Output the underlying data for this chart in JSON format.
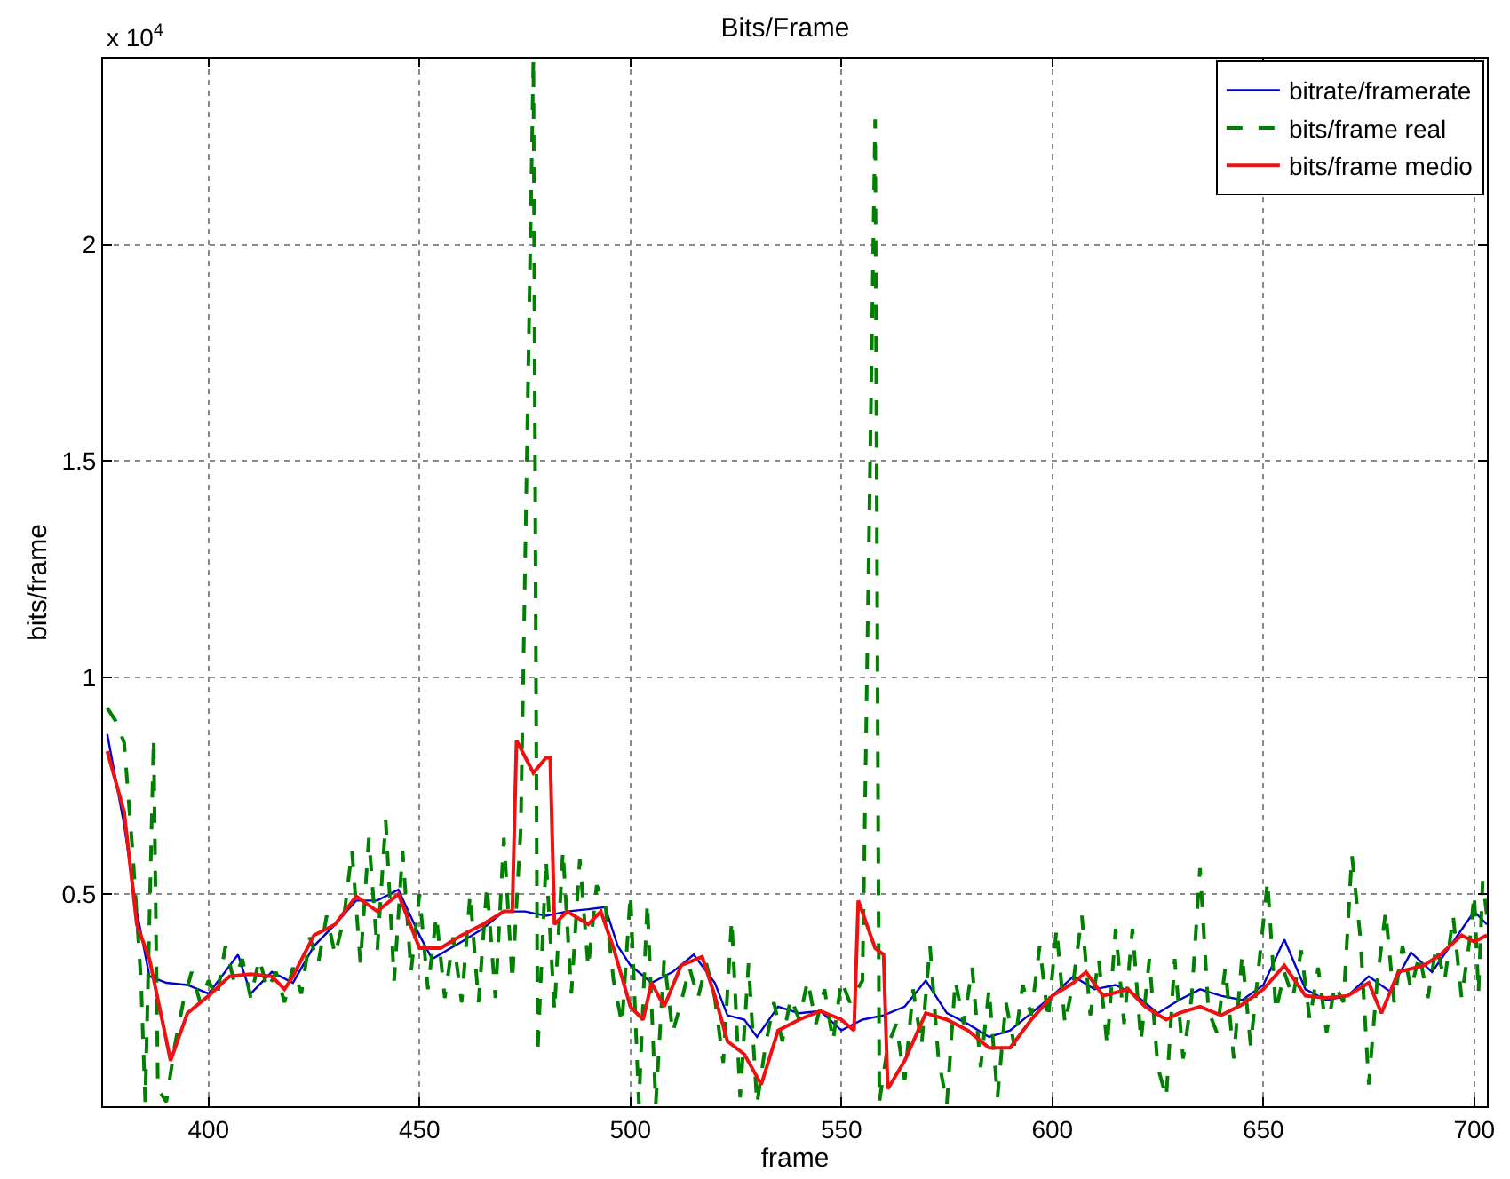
{
  "chart_data": {
    "type": "line",
    "title": "Bits/Frame",
    "xlabel": "frame",
    "ylabel": "bits/frame",
    "annotations": [
      "x 10$^{4}$"
    ],
    "xlim": [
      375,
      703
    ],
    "xticks": [
      400,
      450,
      500,
      550,
      600,
      650,
      700
    ],
    "ylim": [
      0.01,
      2.43
    ],
    "yticks": [
      0.5,
      1,
      1.5,
      2
    ],
    "grid": true,
    "legend": "top right",
    "marker": "none",
    "series": [
      {
        "name": "bitrate/framerate",
        "color": "#0000cc",
        "line_style": "solid",
        "x": [
          376,
          380,
          383,
          386,
          390,
          395,
          400,
          407,
          410,
          415,
          420,
          425,
          430,
          435,
          440,
          445,
          450,
          453,
          460,
          465,
          470,
          475,
          480,
          485,
          490,
          494,
          497,
          500,
          505,
          510,
          515,
          520,
          523,
          527,
          530,
          535,
          540,
          545,
          550,
          555,
          560,
          565,
          570,
          575,
          580,
          585,
          590,
          595,
          600,
          605,
          610,
          615,
          620,
          625,
          630,
          635,
          640,
          645,
          650,
          655,
          660,
          665,
          670,
          675,
          680,
          685,
          690,
          695,
          700,
          703
        ],
        "values": [
          0.87,
          0.66,
          0.46,
          0.31,
          0.295,
          0.29,
          0.27,
          0.36,
          0.27,
          0.32,
          0.295,
          0.38,
          0.43,
          0.485,
          0.485,
          0.51,
          0.405,
          0.35,
          0.39,
          0.42,
          0.46,
          0.46,
          0.45,
          0.46,
          0.465,
          0.47,
          0.38,
          0.335,
          0.295,
          0.32,
          0.36,
          0.295,
          0.22,
          0.21,
          0.17,
          0.24,
          0.225,
          0.23,
          0.185,
          0.21,
          0.22,
          0.24,
          0.3,
          0.225,
          0.2,
          0.17,
          0.185,
          0.225,
          0.265,
          0.31,
          0.28,
          0.29,
          0.265,
          0.225,
          0.255,
          0.28,
          0.265,
          0.255,
          0.29,
          0.395,
          0.28,
          0.255,
          0.265,
          0.31,
          0.275,
          0.365,
          0.32,
          0.39,
          0.46,
          0.43
        ]
      },
      {
        "name": "bits/frame real",
        "color": "#008000",
        "line_style": "dashed",
        "x": [
          376,
          378,
          380,
          382,
          384,
          385,
          387,
          388,
          390,
          392,
          394,
          396,
          398,
          400,
          402,
          404,
          406,
          408,
          410,
          412,
          414,
          416,
          418,
          420,
          422,
          424,
          426,
          428,
          430,
          432,
          434,
          436,
          438,
          440,
          442,
          444,
          446,
          448,
          450,
          452,
          454,
          456,
          458,
          460,
          462,
          464,
          466,
          468,
          470,
          472,
          474,
          477,
          478,
          480,
          482,
          484,
          486,
          488,
          490,
          492,
          494,
          496,
          498,
          500,
          502,
          504,
          506,
          508,
          510,
          512,
          514,
          516,
          518,
          520,
          522,
          524,
          526,
          528,
          530,
          532,
          534,
          536,
          538,
          540,
          542,
          544,
          546,
          548,
          550,
          552,
          555,
          558,
          559,
          561,
          563,
          565,
          567,
          569,
          571,
          573,
          575,
          577,
          579,
          581,
          583,
          585,
          587,
          589,
          591,
          593,
          595,
          597,
          599,
          601,
          603,
          605,
          607,
          609,
          611,
          613,
          615,
          617,
          619,
          621,
          623,
          625,
          627,
          629,
          631,
          633,
          635,
          637,
          639,
          641,
          643,
          645,
          647,
          649,
          651,
          653,
          655,
          657,
          659,
          661,
          663,
          665,
          667,
          669,
          671,
          673,
          675,
          677,
          679,
          681,
          683,
          685,
          687,
          689,
          691,
          693,
          695,
          697,
          699,
          700,
          701,
          702,
          703
        ],
        "values": [
          0.93,
          0.9,
          0.85,
          0.6,
          0.3,
          0.02,
          0.86,
          0.05,
          0.02,
          0.15,
          0.25,
          0.32,
          0.25,
          0.3,
          0.26,
          0.38,
          0.3,
          0.35,
          0.26,
          0.35,
          0.28,
          0.32,
          0.25,
          0.33,
          0.27,
          0.4,
          0.34,
          0.45,
          0.36,
          0.44,
          0.6,
          0.34,
          0.63,
          0.37,
          0.67,
          0.3,
          0.6,
          0.32,
          0.5,
          0.28,
          0.45,
          0.26,
          0.4,
          0.25,
          0.5,
          0.25,
          0.52,
          0.26,
          0.63,
          0.3,
          0.65,
          2.43,
          0.13,
          0.58,
          0.23,
          0.6,
          0.27,
          0.58,
          0.33,
          0.52,
          0.48,
          0.3,
          0.2,
          0.5,
          0.015,
          0.48,
          0.015,
          0.35,
          0.18,
          0.25,
          0.33,
          0.26,
          0.34,
          0.26,
          0.11,
          0.44,
          0.03,
          0.34,
          0.015,
          0.15,
          0.25,
          0.16,
          0.26,
          0.21,
          0.3,
          0.2,
          0.28,
          0.16,
          0.3,
          0.25,
          0.3,
          2.29,
          0.02,
          0.15,
          0.2,
          0.07,
          0.28,
          0.15,
          0.38,
          0.12,
          0.015,
          0.3,
          0.2,
          0.33,
          0.1,
          0.28,
          0.03,
          0.25,
          0.15,
          0.29,
          0.22,
          0.38,
          0.21,
          0.42,
          0.2,
          0.3,
          0.45,
          0.22,
          0.35,
          0.15,
          0.42,
          0.2,
          0.42,
          0.16,
          0.35,
          0.1,
          0.03,
          0.35,
          0.12,
          0.26,
          0.56,
          0.23,
          0.18,
          0.33,
          0.12,
          0.36,
          0.15,
          0.34,
          0.53,
          0.23,
          0.32,
          0.26,
          0.37,
          0.21,
          0.33,
          0.18,
          0.29,
          0.25,
          0.59,
          0.4,
          0.06,
          0.3,
          0.46,
          0.25,
          0.38,
          0.28,
          0.36,
          0.26,
          0.38,
          0.3,
          0.45,
          0.26,
          0.4,
          0.5,
          0.27,
          0.53,
          0.45
        ]
      },
      {
        "name": "bits/frame medio",
        "color": "#ee1111",
        "line_style": "solid",
        "x": [
          376,
          380,
          383,
          386,
          389,
          391,
          395,
          400,
          405,
          410,
          415,
          418,
          420,
          425,
          430,
          435,
          440,
          445,
          450,
          455,
          460,
          465,
          470,
          472,
          473,
          477,
          480,
          481,
          482,
          485,
          490,
          493,
          496,
          500,
          503,
          505,
          508,
          512,
          517,
          520,
          523,
          527,
          531,
          535,
          540,
          545,
          550,
          553,
          554,
          558,
          560,
          561,
          565,
          570,
          575,
          580,
          585,
          590,
          595,
          600,
          605,
          608,
          612,
          618,
          622,
          627,
          630,
          635,
          640,
          645,
          650,
          655,
          660,
          665,
          670,
          675,
          678,
          682,
          688,
          692,
          697,
          700,
          703
        ],
        "values": [
          0.83,
          0.69,
          0.43,
          0.35,
          0.21,
          0.115,
          0.225,
          0.265,
          0.31,
          0.315,
          0.31,
          0.28,
          0.31,
          0.405,
          0.43,
          0.495,
          0.46,
          0.5,
          0.375,
          0.375,
          0.405,
          0.43,
          0.46,
          0.46,
          0.855,
          0.78,
          0.815,
          0.815,
          0.43,
          0.46,
          0.43,
          0.46,
          0.375,
          0.24,
          0.21,
          0.295,
          0.24,
          0.335,
          0.355,
          0.265,
          0.16,
          0.13,
          0.06,
          0.185,
          0.21,
          0.23,
          0.21,
          0.185,
          0.485,
          0.375,
          0.36,
          0.05,
          0.115,
          0.225,
          0.21,
          0.185,
          0.145,
          0.145,
          0.21,
          0.265,
          0.295,
          0.32,
          0.265,
          0.28,
          0.24,
          0.21,
          0.225,
          0.24,
          0.22,
          0.245,
          0.28,
          0.335,
          0.265,
          0.26,
          0.265,
          0.295,
          0.225,
          0.32,
          0.335,
          0.36,
          0.405,
          0.39,
          0.405
        ]
      }
    ]
  }
}
